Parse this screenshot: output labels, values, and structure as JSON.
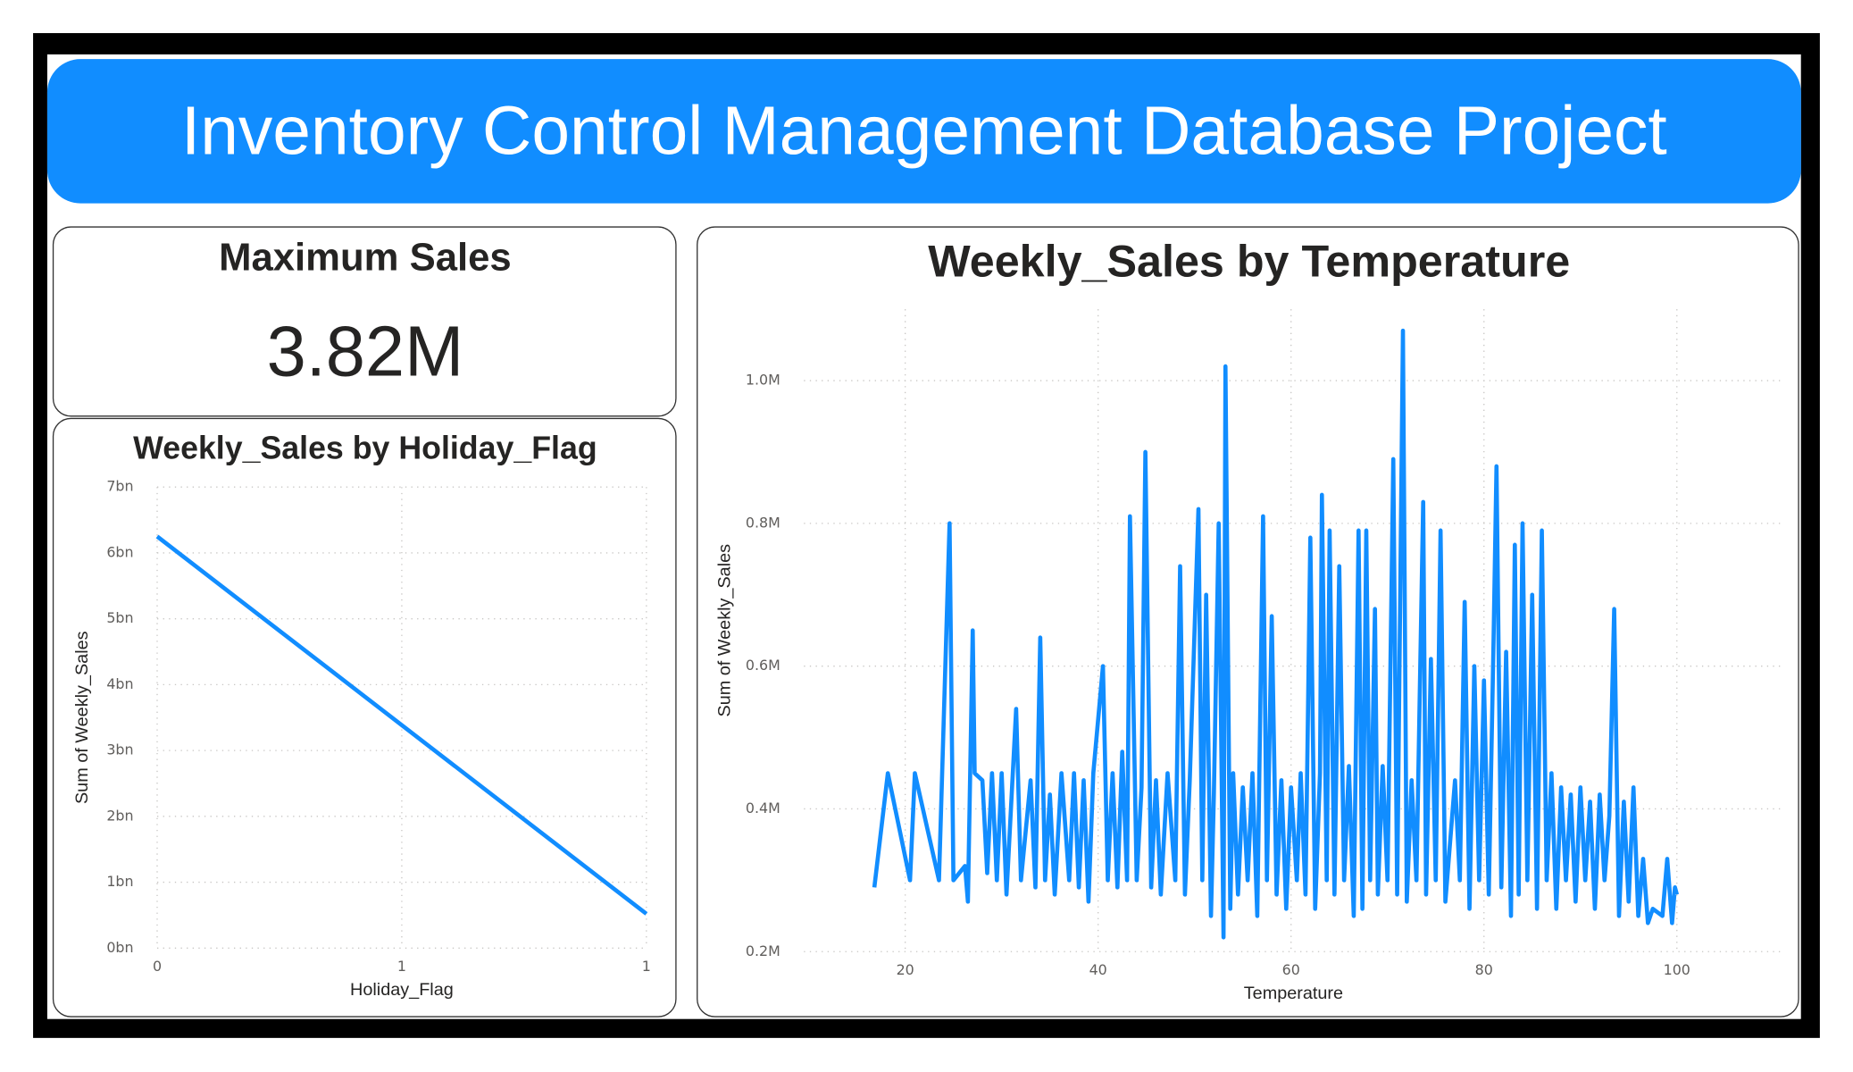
{
  "header": {
    "title": "Inventory Control Management Database Project"
  },
  "kpi": {
    "title": "Maximum Sales",
    "value": "3.82M"
  },
  "chart_data": [
    {
      "type": "line",
      "title": "Weekly_Sales by Holiday_Flag",
      "x_label": "Holiday_Flag",
      "y_label": "Sum of Weekly_Sales",
      "x": [
        0,
        1
      ],
      "values": [
        6250000000,
        520000000
      ],
      "color": "#118dff",
      "xlim": [
        0,
        1
      ],
      "xticks": [
        0,
        {
          "value": 0.5,
          "label": "1"
        },
        1
      ],
      "ylim": [
        0,
        7000000000
      ],
      "yticks": [
        {
          "value": 0,
          "label": "0bn"
        },
        {
          "value": 1000000000,
          "label": "1bn"
        },
        {
          "value": 2000000000,
          "label": "2bn"
        },
        {
          "value": 3000000000,
          "label": "3bn"
        },
        {
          "value": 4000000000,
          "label": "4bn"
        },
        {
          "value": 5000000000,
          "label": "5bn"
        },
        {
          "value": 6000000000,
          "label": "6bn"
        },
        {
          "value": 7000000000,
          "label": "7bn"
        }
      ],
      "grid": true
    },
    {
      "type": "line",
      "title": "Weekly_Sales by Temperature",
      "x_label": "Temperature",
      "y_label": "Sum of Weekly_Sales",
      "x": [
        16.8,
        18.2,
        20.5,
        21,
        23.5,
        24.6,
        25,
        26.2,
        26.5,
        27,
        27.2,
        28,
        28.5,
        29,
        29.5,
        30,
        30.5,
        31.5,
        32,
        33,
        33.5,
        34,
        34.5,
        35,
        35.5,
        36.2,
        37,
        37.5,
        38,
        38.5,
        39,
        39.5,
        40.5,
        41,
        41.5,
        42,
        42.5,
        43,
        43.3,
        44,
        44.5,
        44.9,
        45.5,
        46,
        46.5,
        47.2,
        48,
        48.5,
        49,
        49.5,
        50.4,
        50.8,
        51.2,
        51.7,
        52,
        52.5,
        53,
        53.2,
        53.7,
        54,
        54.5,
        55,
        55.5,
        56,
        56.5,
        57.1,
        57.5,
        58,
        58.5,
        59,
        59.5,
        60,
        60.6,
        61,
        61.5,
        62,
        62.5,
        63,
        63.2,
        63.7,
        64,
        64.5,
        65,
        65.5,
        66,
        66.5,
        67,
        67.4,
        67.8,
        68.2,
        68.7,
        69,
        69.5,
        70,
        70.6,
        71,
        71.6,
        72,
        72.5,
        73,
        73.7,
        74,
        74.5,
        75,
        75.5,
        76,
        77,
        77.5,
        78,
        78.5,
        79,
        79.5,
        80,
        80.5,
        81,
        81.3,
        81.8,
        82.3,
        82.8,
        83.2,
        83.6,
        84,
        84.5,
        85,
        85.5,
        86,
        86.5,
        87,
        87.5,
        88,
        88.5,
        89,
        89.5,
        90,
        90.5,
        91,
        91.5,
        92,
        92.5,
        93,
        93.5,
        94,
        94.5,
        95,
        95.5,
        96,
        96.5,
        97,
        97.5,
        98.5,
        99,
        99.5,
        99.8,
        100
      ],
      "values": [
        290000,
        450000,
        300000,
        450000,
        300000,
        800000,
        300000,
        320000,
        270000,
        650000,
        450000,
        440000,
        310000,
        450000,
        300000,
        450000,
        280000,
        540000,
        300000,
        440000,
        290000,
        640000,
        300000,
        420000,
        280000,
        450000,
        300000,
        450000,
        290000,
        440000,
        270000,
        450000,
        600000,
        300000,
        450000,
        290000,
        480000,
        300000,
        810000,
        300000,
        430000,
        900000,
        290000,
        440000,
        280000,
        450000,
        300000,
        740000,
        280000,
        440000,
        820000,
        300000,
        700000,
        250000,
        420000,
        800000,
        220000,
        1020000,
        260000,
        450000,
        280000,
        430000,
        300000,
        450000,
        250000,
        810000,
        300000,
        670000,
        280000,
        440000,
        260000,
        430000,
        300000,
        450000,
        280000,
        780000,
        260000,
        450000,
        840000,
        300000,
        790000,
        280000,
        740000,
        300000,
        460000,
        250000,
        790000,
        260000,
        790000,
        300000,
        680000,
        280000,
        460000,
        300000,
        890000,
        280000,
        1070000,
        270000,
        440000,
        300000,
        830000,
        280000,
        610000,
        300000,
        790000,
        270000,
        440000,
        300000,
        690000,
        260000,
        600000,
        300000,
        580000,
        280000,
        640000,
        880000,
        290000,
        620000,
        250000,
        770000,
        280000,
        800000,
        300000,
        700000,
        260000,
        790000,
        300000,
        450000,
        260000,
        430000,
        300000,
        420000,
        270000,
        430000,
        300000,
        410000,
        260000,
        420000,
        300000,
        390000,
        680000,
        250000,
        410000,
        270000,
        430000,
        250000,
        330000,
        240000,
        260000,
        250000,
        330000,
        240000,
        290000,
        280000
      ],
      "color": "#118dff",
      "xlim": [
        9.5,
        111
      ],
      "xticks": [
        20,
        40,
        60,
        80,
        100
      ],
      "ylim": [
        200000,
        1100000
      ],
      "yticks": [
        {
          "value": 200000,
          "label": "0.2M"
        },
        {
          "value": 400000,
          "label": "0.4M"
        },
        {
          "value": 600000,
          "label": "0.6M"
        },
        {
          "value": 800000,
          "label": "0.8M"
        },
        {
          "value": 1000000,
          "label": "1.0M"
        }
      ],
      "grid": true
    }
  ]
}
